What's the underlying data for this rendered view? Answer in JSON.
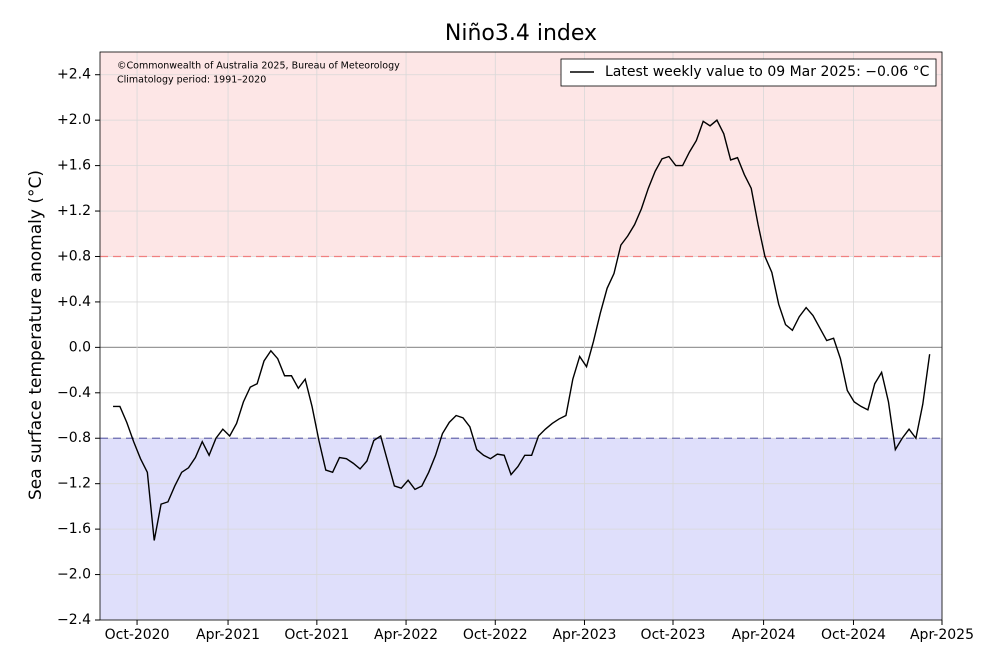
{
  "chart_data": {
    "type": "line",
    "title": "Niño3.4 index",
    "y_label": "Sea surface temperature anomaly (°C)",
    "annotations": [
      "©Commonwealth of Australia 2025, Bureau of Meteorology",
      "Climatology period: 1991–2020"
    ],
    "series": [
      {
        "name": "Latest weekly value to 09 Mar 2025: −0.06 °C",
        "color": "#000000",
        "values": [
          -0.52,
          -0.52,
          -0.66,
          -0.83,
          -0.98,
          -1.1,
          -1.7,
          -1.38,
          -1.36,
          -1.22,
          -1.1,
          -1.06,
          -0.97,
          -0.83,
          -0.95,
          -0.8,
          -0.72,
          -0.78,
          -0.67,
          -0.48,
          -0.35,
          -0.32,
          -0.12,
          -0.03,
          -0.1,
          -0.25,
          -0.25,
          -0.36,
          -0.28,
          -0.52,
          -0.82,
          -1.08,
          -1.1,
          -0.97,
          -0.98,
          -1.02,
          -1.07,
          -1.0,
          -0.82,
          -0.78,
          -1.0,
          -1.22,
          -1.24,
          -1.17,
          -1.25,
          -1.22,
          -1.1,
          -0.95,
          -0.76,
          -0.66,
          -0.6,
          -0.62,
          -0.7,
          -0.9,
          -0.95,
          -0.98,
          -0.94,
          -0.95,
          -1.12,
          -1.05,
          -0.95,
          -0.95,
          -0.78,
          -0.72,
          -0.67,
          -0.63,
          -0.6,
          -0.28,
          -0.08,
          -0.17,
          0.05,
          0.3,
          0.52,
          0.65,
          0.9,
          0.98,
          1.08,
          1.22,
          1.4,
          1.55,
          1.66,
          1.68,
          1.6,
          1.6,
          1.72,
          1.82,
          1.99,
          1.95,
          2.0,
          1.88,
          1.65,
          1.67,
          1.52,
          1.4,
          1.08,
          0.8,
          0.66,
          0.38,
          0.2,
          0.15,
          0.27,
          0.35,
          0.28,
          0.17,
          0.06,
          0.08,
          -0.1,
          -0.38,
          -0.48,
          -0.52,
          -0.55,
          -0.32,
          -0.22,
          -0.48,
          -0.9,
          -0.8,
          -0.72,
          -0.8,
          -0.5,
          -0.06
        ]
      }
    ],
    "xlim": [
      -1.9,
      120.8
    ],
    "xticks": [
      {
        "value": 3.5,
        "label": "Oct-2020"
      },
      {
        "value": 16.76,
        "label": "Apr-2021"
      },
      {
        "value": 29.7,
        "label": "Oct-2021"
      },
      {
        "value": 42.7,
        "label": "Apr-2022"
      },
      {
        "value": 55.7,
        "label": "Oct-2022"
      },
      {
        "value": 68.7,
        "label": "Apr-2023"
      },
      {
        "value": 81.6,
        "label": "Oct-2023"
      },
      {
        "value": 94.8,
        "label": "Apr-2024"
      },
      {
        "value": 107.9,
        "label": "Oct-2024"
      },
      {
        "value": 120.8,
        "label": "Apr-2025"
      }
    ],
    "ylim": [
      -2.4,
      2.6
    ],
    "yticks": [
      {
        "value": -2.4,
        "label": "−2.4"
      },
      {
        "value": -2.0,
        "label": "−2.0"
      },
      {
        "value": -1.6,
        "label": "−1.6"
      },
      {
        "value": -1.2,
        "label": "−1.2"
      },
      {
        "value": -0.8,
        "label": "−0.8"
      },
      {
        "value": -0.4,
        "label": "−0.4"
      },
      {
        "value": 0,
        "label": "0.0"
      },
      {
        "value": 0.4,
        "label": "+0.4"
      },
      {
        "value": 0.8,
        "label": "+0.8"
      },
      {
        "value": 1.2,
        "label": "+1.2"
      },
      {
        "value": 1.6,
        "label": "+1.6"
      },
      {
        "value": 2.0,
        "label": "+2.0"
      },
      {
        "value": 2.4,
        "label": "+2.4"
      }
    ],
    "grid": true,
    "legend": "upper right",
    "reference_lines": [
      {
        "value": 0.8,
        "color": "#f08080",
        "band_color": "#fde6e6"
      },
      {
        "value": -0.8,
        "color": "#6a6ab0",
        "band_color": "#dfdffb"
      }
    ]
  }
}
